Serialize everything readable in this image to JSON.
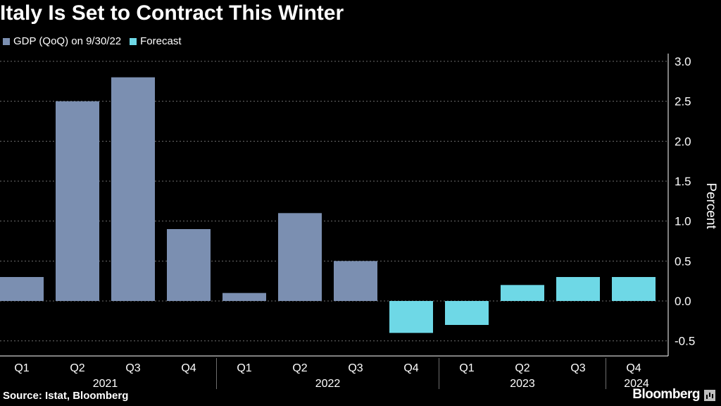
{
  "title": "Italy Is Set to Contract This Winter",
  "source": "Source: Istat, Bloomberg",
  "brand": "Bloomberg",
  "chart_data": {
    "type": "bar",
    "title": "Italy Is Set to Contract This Winter",
    "ylabel": "Percent",
    "ylim": [
      -0.5,
      3.0
    ],
    "yticks": [
      -0.5,
      0.0,
      0.5,
      1.0,
      1.5,
      2.0,
      2.5,
      3.0
    ],
    "ytick_labels": [
      "-0.5",
      "0.0",
      "0.5",
      "1.0",
      "1.5",
      "2.0",
      "2.5",
      "3.0"
    ],
    "grid": true,
    "legend_position": "top-left",
    "categories": [
      "Q1",
      "Q2",
      "Q3",
      "Q4",
      "Q1",
      "Q2",
      "Q3",
      "Q4",
      "Q1",
      "Q2",
      "Q3",
      "Q4"
    ],
    "year_groups": [
      {
        "label": "2021",
        "start": 0,
        "end": 3
      },
      {
        "label": "2022",
        "start": 4,
        "end": 7
      },
      {
        "label": "2023",
        "start": 8,
        "end": 10
      },
      {
        "label": "2024",
        "start": 11,
        "end": 11
      }
    ],
    "series": [
      {
        "name": "GDP (QoQ) on 9/30/22",
        "color": "#7b8fb1",
        "values": [
          0.3,
          2.5,
          2.8,
          0.9,
          0.1,
          1.1,
          0.5,
          null,
          null,
          null,
          null,
          null
        ]
      },
      {
        "name": "Forecast",
        "color": "#6ed8e6",
        "values": [
          null,
          null,
          null,
          null,
          null,
          null,
          null,
          -0.4,
          -0.3,
          0.2,
          0.3,
          0.3
        ]
      }
    ]
  }
}
